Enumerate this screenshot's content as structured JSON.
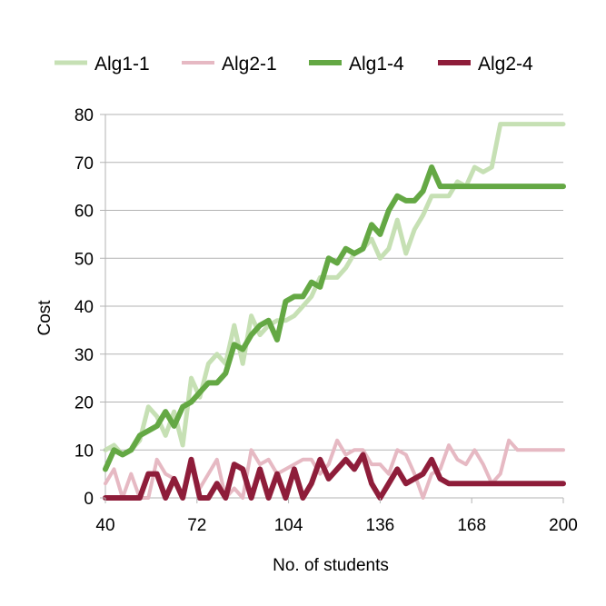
{
  "chart_data": {
    "type": "line",
    "xlabel": "No. of students",
    "ylabel": "Cost",
    "xlim": [
      40,
      200
    ],
    "ylim": [
      0,
      80
    ],
    "x_ticks": [
      40,
      72,
      104,
      136,
      168,
      200
    ],
    "y_ticks": [
      0,
      10,
      20,
      30,
      40,
      50,
      60,
      70,
      80
    ],
    "grid": "horizontal",
    "legend_position": "top",
    "x": [
      40,
      43,
      46,
      49,
      52,
      55,
      58,
      61,
      64,
      67,
      70,
      73,
      76,
      79,
      82,
      85,
      88,
      91,
      94,
      97,
      100,
      103,
      106,
      109,
      112,
      115,
      118,
      121,
      124,
      127,
      130,
      133,
      136,
      139,
      142,
      145,
      148,
      151,
      154,
      157,
      160,
      163,
      166,
      169,
      172,
      175,
      178,
      181,
      184,
      187,
      190,
      193,
      196,
      199,
      200
    ],
    "series": [
      {
        "name": "Alg1-1",
        "color": "#c6e0b4",
        "width": 5,
        "values": [
          10,
          11,
          9,
          10,
          12,
          19,
          17,
          13,
          18,
          11,
          25,
          21,
          28,
          30,
          28,
          36,
          28,
          38,
          34,
          36,
          37,
          37,
          38,
          40,
          42,
          46,
          46,
          46,
          48,
          51,
          52,
          54,
          50,
          52,
          58,
          51,
          56,
          59,
          63,
          63,
          63,
          66,
          65,
          69,
          68,
          69,
          78,
          78,
          78,
          78,
          78,
          78,
          78,
          78,
          78
        ]
      },
      {
        "name": "Alg2-1",
        "color": "#e6b9c3",
        "width": 4,
        "values": [
          3,
          6,
          0,
          5,
          0,
          0,
          8,
          5,
          4,
          0,
          7,
          2,
          5,
          8,
          0,
          2,
          0,
          10,
          7,
          8,
          5,
          6,
          7,
          8,
          8,
          5,
          7,
          12,
          9,
          10,
          10,
          7,
          7,
          5,
          10,
          9,
          5,
          0,
          5,
          6,
          11,
          8,
          7,
          10,
          7,
          3,
          5,
          12,
          10,
          10,
          10,
          10,
          10,
          10,
          10
        ]
      },
      {
        "name": "Alg1-4",
        "color": "#64a844",
        "width": 6,
        "values": [
          6,
          10,
          9,
          10,
          13,
          14,
          15,
          18,
          15,
          19,
          20,
          22,
          24,
          24,
          26,
          32,
          31,
          34,
          36,
          37,
          33,
          41,
          42,
          42,
          45,
          44,
          50,
          49,
          52,
          51,
          52,
          57,
          55,
          60,
          63,
          62,
          62,
          64,
          69,
          65,
          65,
          65,
          65,
          65,
          65,
          65,
          65,
          65,
          65,
          65,
          65,
          65,
          65,
          65,
          65
        ]
      },
      {
        "name": "Alg2-4",
        "color": "#8e1d3a",
        "width": 6,
        "values": [
          0,
          0,
          0,
          0,
          0,
          5,
          5,
          0,
          4,
          0,
          8,
          0,
          0,
          3,
          0,
          7,
          6,
          0,
          6,
          0,
          5,
          0,
          6,
          0,
          3,
          8,
          4,
          6,
          8,
          6,
          9,
          3,
          0,
          3,
          6,
          3,
          4,
          5,
          8,
          4,
          3,
          3,
          3,
          3,
          3,
          3,
          3,
          3,
          3,
          3,
          3,
          3,
          3,
          3,
          3
        ]
      }
    ]
  }
}
